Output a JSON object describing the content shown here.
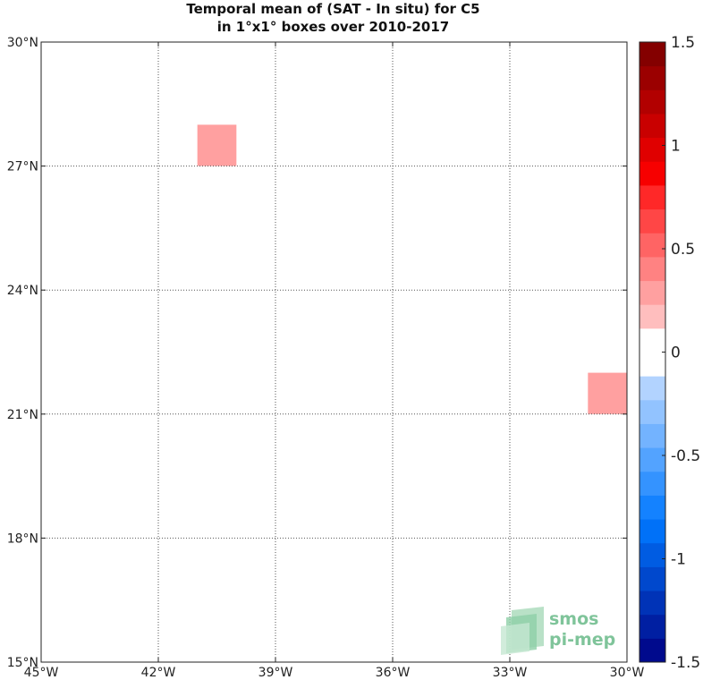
{
  "chart_data": {
    "type": "heatmap",
    "title": [
      "Temporal mean of (SAT - In situ) for C5",
      "in 1°x1° boxes over 2010-2017"
    ],
    "xlabel": "",
    "ylabel": "",
    "xlim": [
      -45,
      -30
    ],
    "ylim": [
      15,
      30
    ],
    "grid": true,
    "x_ticks": [
      {
        "value": -45,
        "label": "45°W"
      },
      {
        "value": -42,
        "label": "42°W"
      },
      {
        "value": -39,
        "label": "39°W"
      },
      {
        "value": -36,
        "label": "36°W"
      },
      {
        "value": -33,
        "label": "33°W"
      },
      {
        "value": -30,
        "label": "30°W"
      }
    ],
    "y_ticks": [
      {
        "value": 15,
        "label": "15°N"
      },
      {
        "value": 18,
        "label": "18°N"
      },
      {
        "value": 21,
        "label": "21°N"
      },
      {
        "value": 24,
        "label": "24°N"
      },
      {
        "value": 27,
        "label": "27°N"
      },
      {
        "value": 30,
        "label": "30°N"
      }
    ],
    "colorbar": {
      "range": [
        -1.5,
        1.5
      ],
      "levels": 26,
      "ticks": [
        {
          "value": 1.5,
          "label": "1.5"
        },
        {
          "value": 1,
          "label": "1"
        },
        {
          "value": 0.5,
          "label": "0.5"
        },
        {
          "value": 0,
          "label": "0"
        },
        {
          "value": -0.5,
          "label": "-0.5"
        },
        {
          "value": -1,
          "label": "-1"
        },
        {
          "value": -1.5,
          "label": "-1.5"
        }
      ]
    },
    "boxes": [
      {
        "lon": [
          -45,
          -44
        ],
        "lat": [
          28,
          29
        ],
        "value": 0.1
      },
      {
        "lon": [
          -45,
          -44
        ],
        "lat": [
          27,
          28
        ],
        "value": 0.1
      },
      {
        "lon": [
          -41,
          -40
        ],
        "lat": [
          27,
          28
        ],
        "value": 0.3
      },
      {
        "lon": [
          -41,
          -40
        ],
        "lat": [
          26,
          27
        ],
        "value": 0.1
      },
      {
        "lon": [
          -40,
          -39
        ],
        "lat": [
          24,
          25
        ],
        "value": 0.1
      },
      {
        "lon": [
          -38,
          -37
        ],
        "lat": [
          22,
          23
        ],
        "value": -0.1
      },
      {
        "lon": [
          -33,
          -32
        ],
        "lat": [
          23,
          24
        ],
        "value": 0.1
      },
      {
        "lon": [
          -32,
          -31
        ],
        "lat": [
          21,
          22
        ],
        "value": 0.1
      },
      {
        "lon": [
          -31,
          -30
        ],
        "lat": [
          21,
          22
        ],
        "value": 0.25
      },
      {
        "lon": [
          -35,
          -34
        ],
        "lat": [
          16,
          17
        ],
        "value": -0.1
      },
      {
        "lon": [
          -37,
          -36
        ],
        "lat": [
          15,
          16
        ],
        "value": 0.1
      }
    ]
  },
  "watermark": {
    "line1": "smos",
    "line2": "pi-mep"
  },
  "colors": {
    "grid": "#555555",
    "axis": "#222222"
  }
}
